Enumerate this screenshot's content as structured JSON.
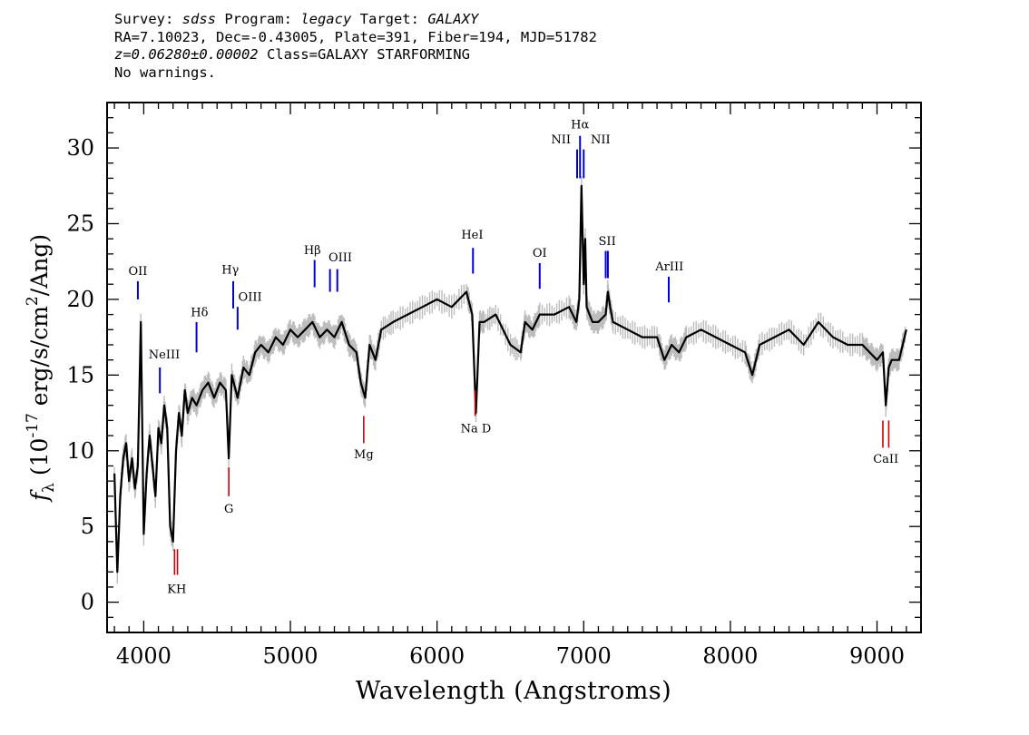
{
  "header": {
    "line1": {
      "survey_label": "Survey: ",
      "survey": "sdss",
      "program_label": " Program: ",
      "program": "legacy",
      "target_label": " Target: ",
      "target": "GALAXY"
    },
    "line2": "RA=7.10023, Dec=-0.43005, Plate=391, Fiber=194, MJD=51782",
    "line3": {
      "redshift": "z=0.06280±0.00002",
      "class": " Class=GALAXY STARFORMING"
    },
    "line4": "No warnings."
  },
  "colors": {
    "flux": "#000000",
    "noise": "#bdbdbd",
    "emission": "#0000dd",
    "absorption": "#cc0000"
  },
  "chart_data": {
    "type": "line",
    "xlabel": "Wavelength (Angstroms)",
    "ylabel": "f_λ (10^-17 erg/s/cm^2/Ang)",
    "xlim": [
      3750,
      9300
    ],
    "ylim": [
      -2,
      33
    ],
    "x_ticks": [
      4000,
      5000,
      6000,
      7000,
      8000,
      9000
    ],
    "y_ticks": [
      0,
      5,
      10,
      15,
      20,
      25,
      30
    ],
    "series": [
      {
        "role": "flux",
        "x": [
          3800,
          3820,
          3840,
          3860,
          3880,
          3900,
          3920,
          3940,
          3960,
          3980,
          4000,
          4020,
          4040,
          4060,
          4080,
          4100,
          4120,
          4140,
          4160,
          4180,
          4200,
          4220,
          4240,
          4260,
          4280,
          4300,
          4330,
          4360,
          4400,
          4440,
          4480,
          4520,
          4560,
          4580,
          4600,
          4640,
          4680,
          4720,
          4760,
          4800,
          4850,
          4900,
          4950,
          5000,
          5050,
          5100,
          5150,
          5200,
          5250,
          5300,
          5350,
          5400,
          5450,
          5480,
          5510,
          5540,
          5580,
          5620,
          5700,
          5800,
          5900,
          6000,
          6100,
          6200,
          6240,
          6265,
          6290,
          6320,
          6400,
          6500,
          6570,
          6600,
          6650,
          6700,
          6800,
          6900,
          6950,
          6970,
          6985,
          7000,
          7010,
          7020,
          7040,
          7060,
          7100,
          7150,
          7165,
          7180,
          7200,
          7300,
          7400,
          7500,
          7550,
          7600,
          7650,
          7700,
          7800,
          7900,
          8000,
          8100,
          8150,
          8200,
          8300,
          8400,
          8500,
          8600,
          8700,
          8800,
          8900,
          8950,
          9000,
          9040,
          9060,
          9080,
          9100,
          9150,
          9200
        ],
        "y": [
          8.5,
          2.0,
          7.0,
          9.5,
          10.5,
          8.0,
          9.5,
          7.5,
          9.0,
          18.5,
          4.5,
          8.5,
          11.0,
          9.0,
          7.0,
          11.5,
          10.5,
          13.0,
          11.5,
          5.0,
          4.0,
          10.0,
          12.5,
          11.0,
          14.0,
          12.5,
          13.5,
          13.0,
          14.0,
          14.5,
          13.5,
          14.5,
          14.0,
          9.5,
          15.0,
          13.5,
          15.5,
          15.0,
          16.5,
          17.0,
          16.5,
          17.5,
          17.0,
          18.0,
          17.5,
          18.0,
          18.5,
          17.5,
          18.0,
          17.5,
          18.5,
          17.0,
          16.5,
          14.5,
          13.5,
          17.0,
          16.0,
          18.0,
          18.5,
          19.0,
          19.5,
          20.0,
          19.5,
          20.5,
          19.0,
          12.5,
          18.5,
          18.5,
          19.0,
          17.0,
          16.5,
          18.5,
          18.0,
          19.0,
          19.0,
          19.5,
          18.5,
          20.0,
          27.5,
          21.0,
          24.0,
          19.5,
          19.0,
          18.5,
          18.5,
          19.0,
          20.5,
          19.5,
          18.5,
          18.0,
          17.5,
          17.5,
          16.0,
          17.0,
          16.5,
          17.5,
          18.0,
          17.5,
          17.0,
          16.5,
          15.0,
          17.0,
          17.5,
          18.0,
          17.0,
          18.5,
          17.5,
          17.0,
          17.0,
          16.5,
          16.0,
          16.5,
          13.0,
          15.5,
          16.0,
          16.0,
          18.0
        ]
      }
    ],
    "emission_lines": [
      {
        "label": "OII",
        "wavelength": 3960,
        "ymin": 20.0,
        "ymax": 21.2
      },
      {
        "label": "NeIII",
        "wavelength": 4110,
        "ymin": 13.8,
        "ymax": 15.5
      },
      {
        "label": "Hδ",
        "wavelength": 4360,
        "ymin": 16.5,
        "ymax": 18.5
      },
      {
        "label": "Hγ",
        "wavelength": 4610,
        "ymin": 19.4,
        "ymax": 21.2
      },
      {
        "label": "OIII",
        "wavelength": 4640,
        "ymin": 18.0,
        "ymax": 19.5
      },
      {
        "label": "Hβ",
        "wavelength": 5165,
        "ymin": 20.8,
        "ymax": 22.6
      },
      {
        "label": "OIII",
        "wavelength": 5270,
        "ymin": 20.5,
        "ymax": 22.0
      },
      {
        "label": "OIII",
        "wavelength": 5320,
        "ymin": 20.5,
        "ymax": 22.0
      },
      {
        "label": "HeI",
        "wavelength": 6245,
        "ymin": 21.7,
        "ymax": 23.4
      },
      {
        "label": "OI",
        "wavelength": 6700,
        "ymin": 20.7,
        "ymax": 22.4
      },
      {
        "label": "NII",
        "wavelength": 6955,
        "ymin": 28.0,
        "ymax": 29.9
      },
      {
        "label": "Hα",
        "wavelength": 6975,
        "ymin": 28.0,
        "ymax": 30.8
      },
      {
        "label": "NII",
        "wavelength": 7000,
        "ymin": 28.0,
        "ymax": 29.9
      },
      {
        "label": "SII",
        "wavelength": 7150,
        "ymin": 21.4,
        "ymax": 23.2
      },
      {
        "label": "SII",
        "wavelength": 7165,
        "ymin": 21.4,
        "ymax": 23.2
      },
      {
        "label": "ArIII",
        "wavelength": 7580,
        "ymin": 19.8,
        "ymax": 21.5
      }
    ],
    "absorption_lines": [
      {
        "label": "K",
        "wavelength": 4210,
        "ymin": 1.8,
        "ymax": 3.5
      },
      {
        "label": "H",
        "wavelength": 4230,
        "ymin": 1.8,
        "ymax": 3.5
      },
      {
        "label": "G",
        "wavelength": 4580,
        "ymin": 7.0,
        "ymax": 8.9
      },
      {
        "label": "Mg",
        "wavelength": 5500,
        "ymin": 10.5,
        "ymax": 12.3
      },
      {
        "label": "Na D",
        "wavelength": 6260,
        "ymin": 12.3,
        "ymax": 14.0
      },
      {
        "label": "CaII",
        "wavelength": 9040,
        "ymin": 10.2,
        "ymax": 12.0
      },
      {
        "label": "CaII",
        "wavelength": 9080,
        "ymin": 10.2,
        "ymax": 12.0
      }
    ],
    "line_labels": [
      {
        "text": "OII",
        "x": 3960,
        "y": 21.6,
        "type": "emission"
      },
      {
        "text": "NeIII",
        "x": 4140,
        "y": 16.1,
        "type": "emission"
      },
      {
        "text": "Hδ",
        "x": 4380,
        "y": 18.9,
        "type": "emission"
      },
      {
        "text": "Hγ",
        "x": 4590,
        "y": 21.7,
        "type": "emission"
      },
      {
        "text": "OIII",
        "x": 4725,
        "y": 19.9,
        "type": "emission"
      },
      {
        "text": "Hβ",
        "x": 5150,
        "y": 23.0,
        "type": "emission"
      },
      {
        "text": "OIII",
        "x": 5340,
        "y": 22.5,
        "type": "emission"
      },
      {
        "text": "HeI",
        "x": 6240,
        "y": 24.0,
        "type": "emission"
      },
      {
        "text": "OI",
        "x": 6700,
        "y": 22.8,
        "type": "emission"
      },
      {
        "text": "NII",
        "x": 6845,
        "y": 30.3,
        "type": "emission"
      },
      {
        "text": "Hα",
        "x": 6975,
        "y": 31.3,
        "type": "emission"
      },
      {
        "text": "NII",
        "x": 7115,
        "y": 30.3,
        "type": "emission"
      },
      {
        "text": "SII",
        "x": 7160,
        "y": 23.6,
        "type": "emission"
      },
      {
        "text": "ArIII",
        "x": 7585,
        "y": 21.9,
        "type": "emission"
      },
      {
        "text": "KH",
        "x": 4225,
        "y": 0.6,
        "type": "absorption"
      },
      {
        "text": "G",
        "x": 4580,
        "y": 5.9,
        "type": "absorption"
      },
      {
        "text": "Mg",
        "x": 5500,
        "y": 9.5,
        "type": "absorption"
      },
      {
        "text": "Na D",
        "x": 6265,
        "y": 11.2,
        "type": "absorption"
      },
      {
        "text": "CaII",
        "x": 9060,
        "y": 9.2,
        "type": "absorption"
      }
    ]
  }
}
